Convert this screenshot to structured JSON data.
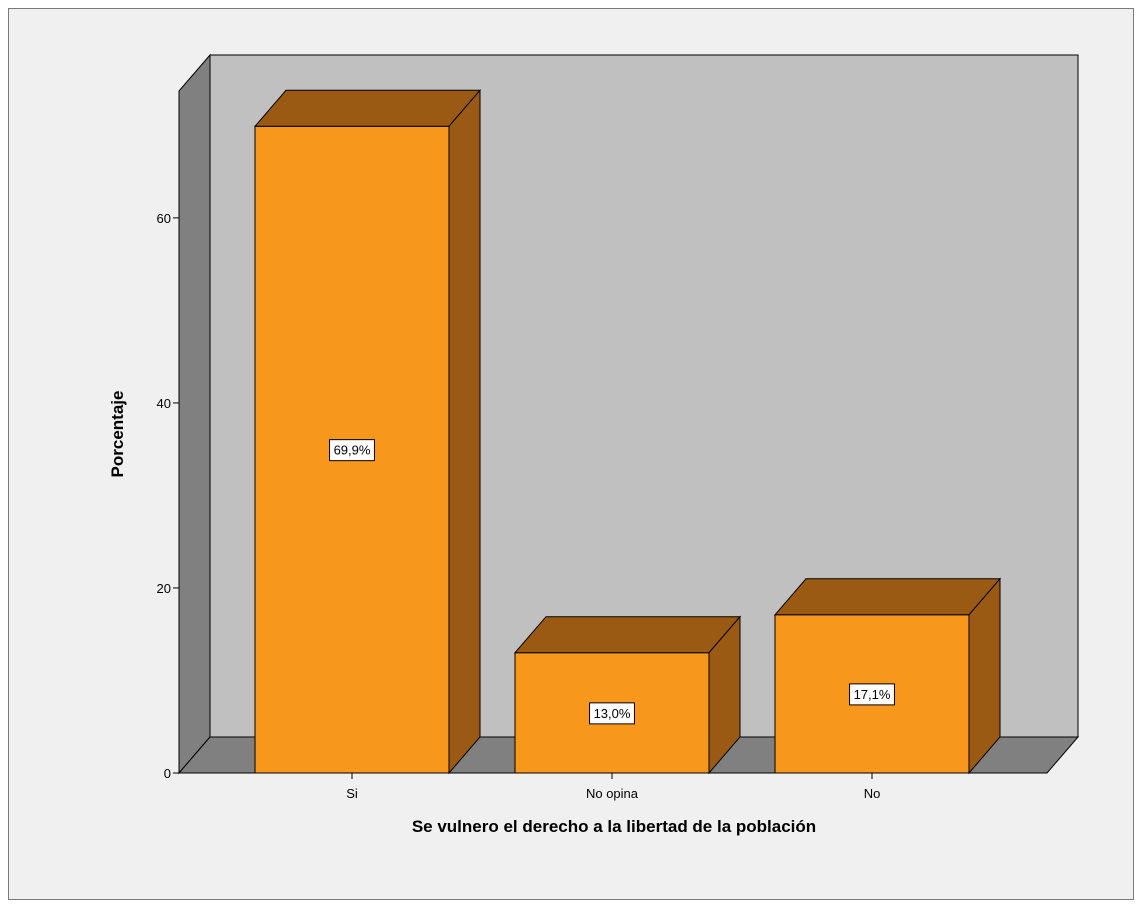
{
  "chart_data": {
    "type": "bar",
    "style": "3d",
    "categories": [
      "Si",
      "No opina",
      "No"
    ],
    "values": [
      69.9,
      13.0,
      17.1
    ],
    "data_labels": [
      "69,9%",
      "13,0%",
      "17,1%"
    ],
    "title": "",
    "xlabel": "Se vulnero el derecho a la libertad de la población",
    "ylabel": "Porcentaje",
    "ylim": [
      0,
      70
    ],
    "yticks": [
      0,
      20,
      40,
      60
    ],
    "grid": false,
    "legend": "none"
  },
  "colors": {
    "frame_background": "#f0f0f0",
    "back_wall": "#c0c0c0",
    "side_wall": "#808080",
    "floor": "#808080",
    "bar_front": "#f7981d",
    "bar_top": "#9a5a13",
    "bar_side": "#9a5a13",
    "outline": "#000000"
  }
}
